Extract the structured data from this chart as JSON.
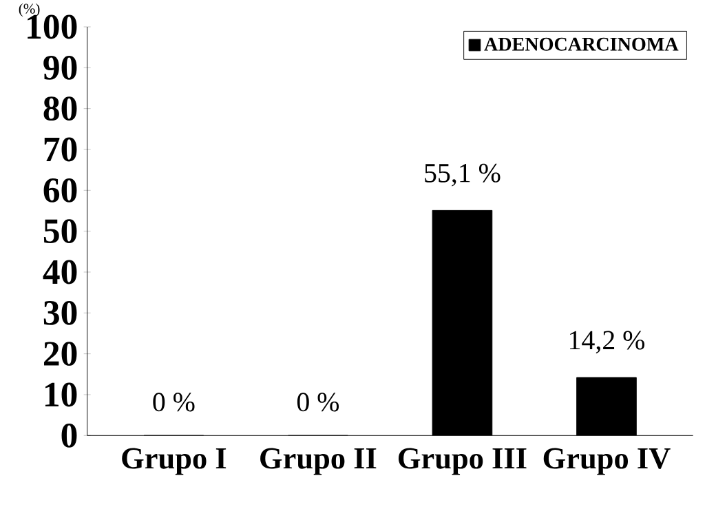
{
  "chart_data": {
    "type": "bar",
    "ylabel": "(%)",
    "categories": [
      "Grupo I",
      "Grupo II",
      "Grupo III",
      "Grupo IV"
    ],
    "series": [
      {
        "name": "ADENOCARCINOMA",
        "color": "#000000",
        "values": [
          0,
          0,
          55.1,
          14.2
        ],
        "value_labels": [
          "0 %",
          "0 %",
          "55,1 %",
          "14,2 %"
        ]
      }
    ],
    "ylim": [
      0,
      100
    ],
    "yticks": [
      0,
      10,
      20,
      30,
      40,
      50,
      60,
      70,
      80,
      90,
      100
    ],
    "legend": "top right"
  }
}
